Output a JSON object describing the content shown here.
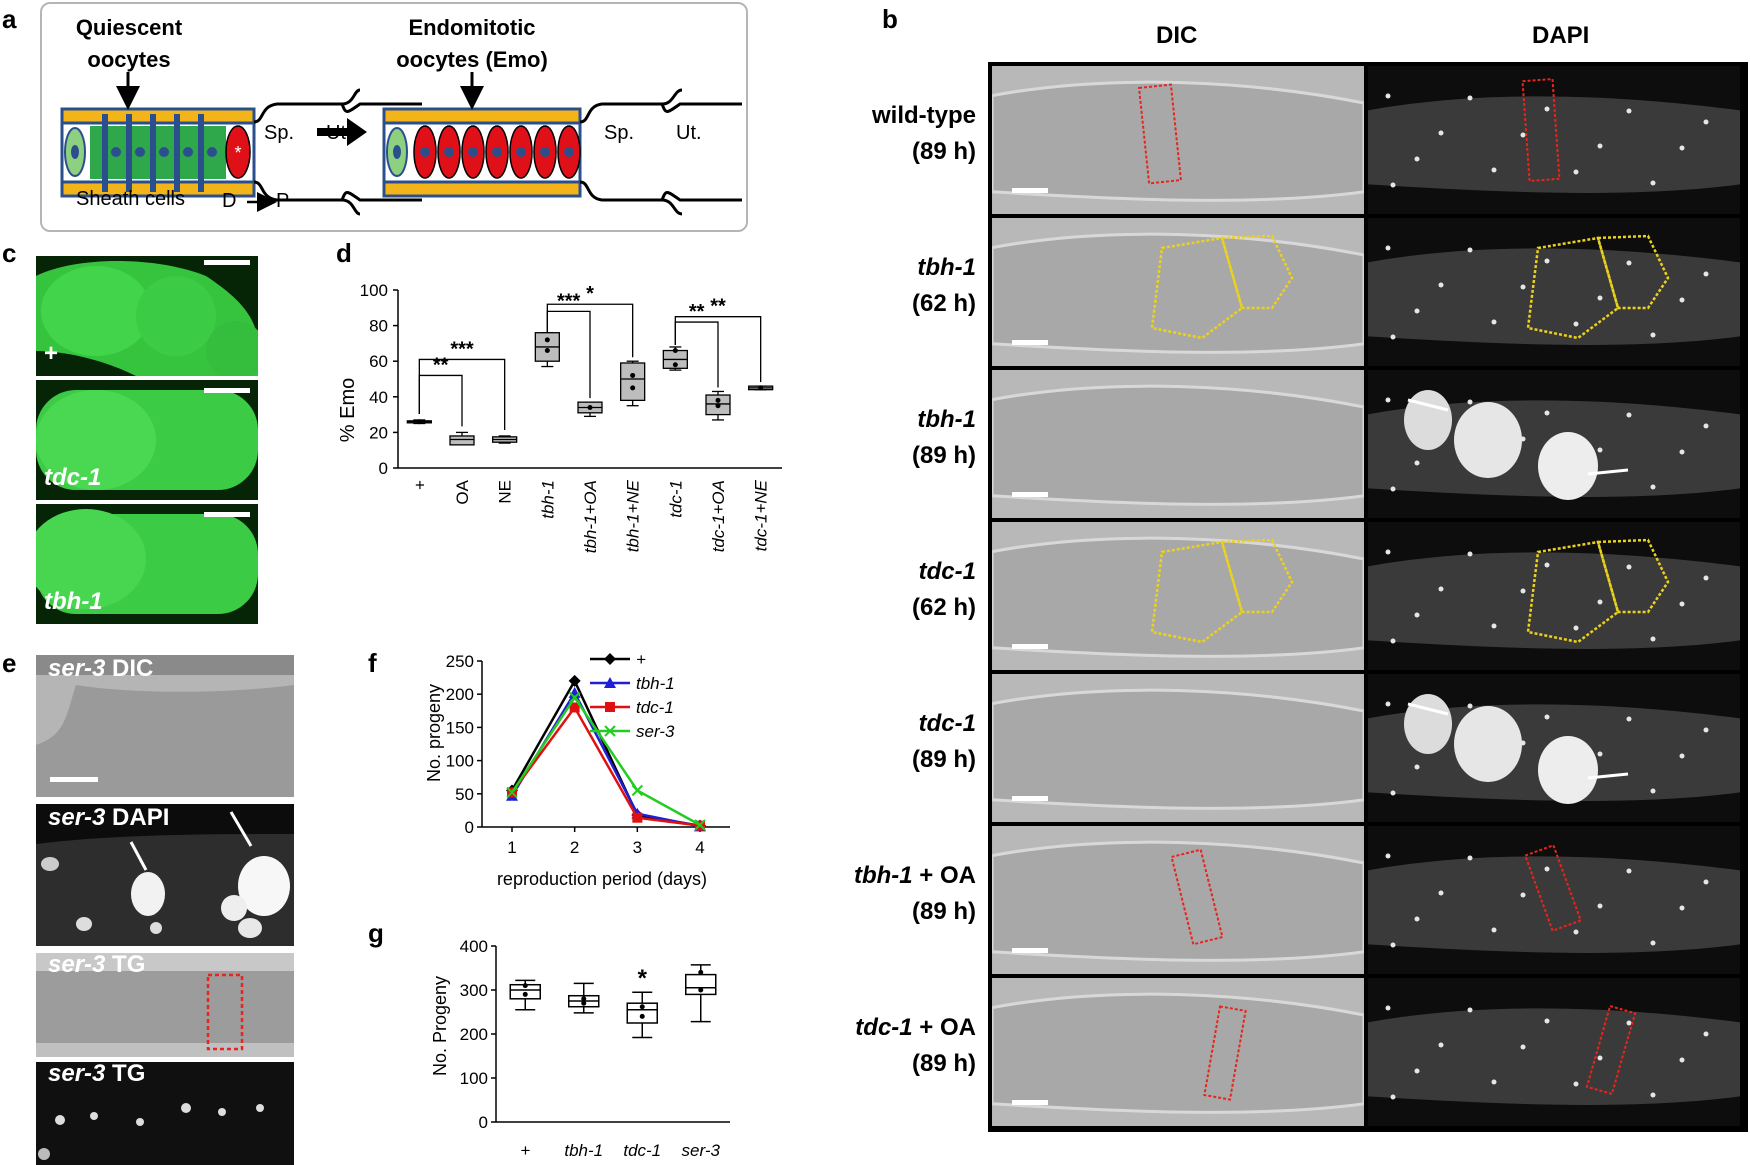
{
  "panel_labels": {
    "a": "a",
    "b": "b",
    "c": "c",
    "d": "d",
    "e": "e",
    "f": "f",
    "g": "g"
  },
  "panel_a": {
    "left_title_1": "Quiescent",
    "left_title_2": "oocytes",
    "right_title_1": "Endomitotic",
    "right_title_2": "oocytes (Emo)",
    "sp": "Sp.",
    "ut": "Ut.",
    "sheath": "Sheath cells",
    "d": "D",
    "p": "P"
  },
  "panel_b": {
    "col_dic": "DIC",
    "col_dapi": "DAPI",
    "rows": [
      {
        "gene": "wild-type",
        "extra": "",
        "time": "(89 h)"
      },
      {
        "gene": "tbh-1",
        "extra": "",
        "time": "(62 h)"
      },
      {
        "gene": "tbh-1",
        "extra": "",
        "time": "(89 h)"
      },
      {
        "gene": "tdc-1",
        "extra": "",
        "time": "(62 h)"
      },
      {
        "gene": "tdc-1",
        "extra": "",
        "time": "(89 h)"
      },
      {
        "gene": "tbh-1",
        "extra": " + OA",
        "time": "(89 h)"
      },
      {
        "gene": "tdc-1",
        "extra": " + OA",
        "time": "(89 h)"
      }
    ]
  },
  "panel_c": {
    "labels": [
      "+",
      "tdc-1",
      "tbh-1"
    ]
  },
  "panel_e": {
    "labels": [
      {
        "gene": "ser-3",
        "rest": " DIC"
      },
      {
        "gene": "ser-3",
        "rest": " DAPI"
      },
      {
        "gene": "ser-3",
        "rest": " TG"
      },
      {
        "gene": "ser-3",
        "rest": " TG"
      }
    ]
  },
  "chart_data": [
    {
      "panel": "d",
      "type": "box",
      "ylabel": "% Emo",
      "ylim": [
        0,
        100
      ],
      "yticks": [
        0,
        20,
        40,
        60,
        80,
        100
      ],
      "categories": [
        "+",
        "OA",
        "NE",
        "tbh-1",
        "tbh-1+OA",
        "tbh-1+NE",
        "tdc-1",
        "tdc-1+OA",
        "tdc-1+NE"
      ],
      "boxes": [
        {
          "min": 25,
          "q1": 25.5,
          "median": 26,
          "q3": 26.5,
          "max": 27,
          "points": [
            26
          ]
        },
        {
          "min": 13,
          "q1": 13,
          "median": 16,
          "q3": 18,
          "max": 20,
          "points": []
        },
        {
          "min": 14,
          "q1": 14.5,
          "median": 16,
          "q3": 17.5,
          "max": 18,
          "points": []
        },
        {
          "min": 57,
          "q1": 60,
          "median": 68,
          "q3": 76,
          "max": 76,
          "points": [
            66,
            72
          ]
        },
        {
          "min": 29,
          "q1": 31,
          "median": 34,
          "q3": 37,
          "max": 37,
          "points": [
            34
          ]
        },
        {
          "min": 35,
          "q1": 38,
          "median": 50,
          "q3": 59,
          "max": 60,
          "points": [
            45,
            52
          ]
        },
        {
          "min": 55,
          "q1": 56,
          "median": 61,
          "q3": 66,
          "max": 68,
          "points": [
            58,
            66
          ]
        },
        {
          "min": 27,
          "q1": 30,
          "median": 36,
          "q3": 41,
          "max": 43,
          "points": [
            35,
            38
          ]
        },
        {
          "min": 44,
          "q1": 44,
          "median": 45,
          "q3": 46,
          "max": 46,
          "points": [
            45
          ]
        }
      ],
      "significance": [
        {
          "from": "+",
          "to": "OA",
          "label": "**"
        },
        {
          "from": "+",
          "to": "NE",
          "label": "***"
        },
        {
          "from": "tbh-1",
          "to": "tbh-1+OA",
          "label": "***"
        },
        {
          "from": "tbh-1",
          "to": "tbh-1+NE",
          "label": "*"
        },
        {
          "from": "tdc-1",
          "to": "tdc-1+OA",
          "label": "**"
        },
        {
          "from": "tdc-1",
          "to": "tdc-1+NE",
          "label": "**"
        }
      ]
    },
    {
      "panel": "f",
      "type": "line",
      "xlabel": "reproduction period (days)",
      "ylabel": "No. progeny",
      "x": [
        1,
        2,
        3,
        4
      ],
      "ylim": [
        0,
        250
      ],
      "yticks": [
        0,
        50,
        100,
        150,
        200,
        250
      ],
      "series": [
        {
          "name": "+",
          "values": [
            55,
            220,
            18,
            2
          ],
          "color": "#000000",
          "marker": "diamond"
        },
        {
          "name": "tbh-1",
          "values": [
            47,
            202,
            20,
            1
          ],
          "color": "#1f1fd6",
          "marker": "triangle"
        },
        {
          "name": "tdc-1",
          "values": [
            52,
            180,
            14,
            2
          ],
          "color": "#e01010",
          "marker": "square"
        },
        {
          "name": "ser-3",
          "values": [
            52,
            195,
            55,
            3
          ],
          "color": "#22cc22",
          "marker": "x"
        }
      ]
    },
    {
      "panel": "g",
      "type": "box",
      "ylabel": "No. Progeny",
      "ylim": [
        0,
        400
      ],
      "yticks": [
        0,
        100,
        200,
        300,
        400
      ],
      "categories": [
        "+",
        "tbh-1",
        "tdc-1",
        "ser-3"
      ],
      "boxes": [
        {
          "min": 255,
          "q1": 280,
          "median": 300,
          "q3": 312,
          "max": 322,
          "points": [
            290,
            310
          ]
        },
        {
          "min": 248,
          "q1": 262,
          "median": 275,
          "q3": 287,
          "max": 315,
          "points": [
            270,
            280
          ]
        },
        {
          "min": 192,
          "q1": 225,
          "median": 255,
          "q3": 270,
          "max": 295,
          "points": [
            240,
            262
          ]
        },
        {
          "min": 228,
          "q1": 290,
          "median": 305,
          "q3": 335,
          "max": 357,
          "points": [
            300,
            340
          ]
        }
      ],
      "annotations": [
        {
          "category": "tdc-1",
          "label": "*"
        }
      ]
    }
  ]
}
